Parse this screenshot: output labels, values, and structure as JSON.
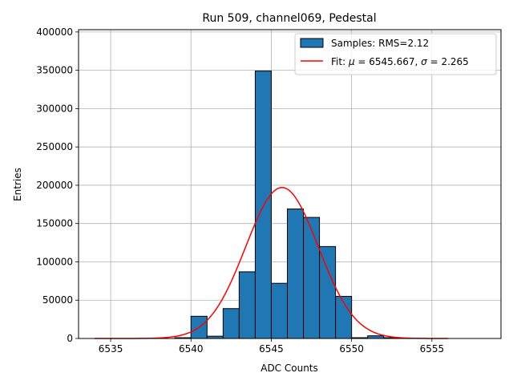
{
  "chart_data": {
    "type": "bar",
    "title": "Run 509, channel069, Pedestal",
    "xlabel": "ADC Counts",
    "ylabel": "Entries",
    "xlim": [
      6533,
      6559.3
    ],
    "ylim": [
      0,
      403000
    ],
    "xticks": [
      6535,
      6540,
      6545,
      6550,
      6555
    ],
    "yticks": [
      0,
      50000,
      100000,
      150000,
      200000,
      250000,
      300000,
      350000,
      400000
    ],
    "grid": true,
    "legend_position": "top-right",
    "bins": [
      {
        "x": 6539,
        "value": 1000
      },
      {
        "x": 6540,
        "value": 29000
      },
      {
        "x": 6541,
        "value": 3000
      },
      {
        "x": 6542,
        "value": 39000
      },
      {
        "x": 6543,
        "value": 87000
      },
      {
        "x": 6544,
        "value": 349000
      },
      {
        "x": 6545,
        "value": 72000
      },
      {
        "x": 6546,
        "value": 169000
      },
      {
        "x": 6547,
        "value": 158000
      },
      {
        "x": 6548,
        "value": 120000
      },
      {
        "x": 6549,
        "value": 55000
      },
      {
        "x": 6550,
        "value": 1000
      },
      {
        "x": 6551,
        "value": 3500
      },
      {
        "x": 6552,
        "value": 1000
      }
    ],
    "series": [
      {
        "name": "Samples: RMS=2.12",
        "kind": "histogram",
        "color": "#1f77b4",
        "edge_color": "#000000"
      },
      {
        "name": "Fit: μ = 6545.667, σ = 2.265",
        "kind": "gaussian-fit",
        "color": "#ff0000",
        "mu": 6545.667,
        "sigma": 2.265,
        "amplitude": 197000,
        "x_range": [
          6534,
          6556
        ]
      }
    ],
    "legend": {
      "samples_label": "Samples: RMS=2.12",
      "fit_prefix": "Fit: ",
      "mu_symbol": "μ",
      "mu_text": " = 6545.667, ",
      "sigma_symbol": "σ",
      "sigma_text": " = 2.265"
    }
  }
}
